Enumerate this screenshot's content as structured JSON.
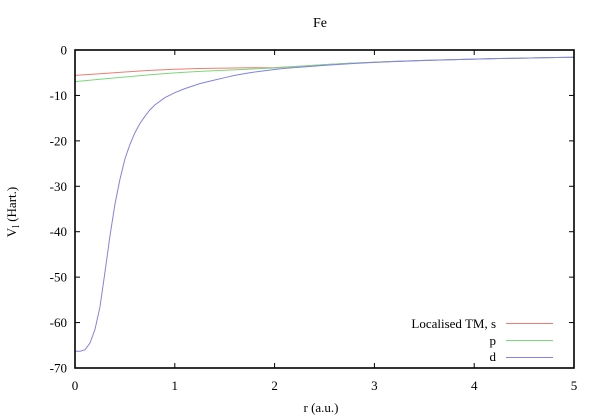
{
  "figure": {
    "title": "Fe",
    "xlabel": "r (a.u.)",
    "ylabel": "V_l (Hart.)",
    "ylabel_parts": {
      "base": "V",
      "sub": "l",
      "rest": " (Hart.)"
    }
  },
  "chart_data": {
    "type": "line",
    "title": "Fe",
    "xlabel": "r (a.u.)",
    "ylabel": "V_l (Hart.)",
    "xlim": [
      0,
      5
    ],
    "ylim": [
      -70,
      0
    ],
    "xticks": [
      0,
      1,
      2,
      3,
      4,
      5
    ],
    "yticks": [
      0,
      -10,
      -20,
      -30,
      -40,
      -50,
      -60,
      -70
    ],
    "grid": false,
    "background": "#ffffff",
    "axis_color": "#000000",
    "legend_position": "inside bottom-right",
    "series": [
      {
        "name": "Localised TM, s",
        "key": "s",
        "color": "#ec7c72",
        "points": [
          [
            0,
            -5.6
          ],
          [
            0.25,
            -5.25
          ],
          [
            0.5,
            -4.85
          ],
          [
            0.75,
            -4.5
          ],
          [
            1,
            -4.25
          ],
          [
            1.25,
            -4.08
          ],
          [
            1.5,
            -3.98
          ],
          [
            1.75,
            -3.92
          ],
          [
            2,
            -3.88
          ],
          [
            2.25,
            -3.56
          ],
          [
            2.5,
            -3.22
          ],
          [
            2.75,
            -2.93
          ],
          [
            3,
            -2.68
          ],
          [
            3.25,
            -2.47
          ],
          [
            3.5,
            -2.29
          ],
          [
            3.75,
            -2.13
          ],
          [
            4,
            -2.0
          ],
          [
            4.25,
            -1.88
          ],
          [
            4.5,
            -1.78
          ],
          [
            4.75,
            -1.68
          ],
          [
            5,
            -1.6
          ]
        ]
      },
      {
        "name": "p",
        "key": "p",
        "color": "#79d879",
        "points": [
          [
            0,
            -6.95
          ],
          [
            0.25,
            -6.45
          ],
          [
            0.5,
            -5.95
          ],
          [
            0.75,
            -5.45
          ],
          [
            1,
            -5.05
          ],
          [
            1.25,
            -4.72
          ],
          [
            1.5,
            -4.45
          ],
          [
            1.75,
            -4.2
          ],
          [
            2,
            -3.97
          ],
          [
            2.25,
            -3.58
          ],
          [
            2.5,
            -3.22
          ],
          [
            2.75,
            -2.93
          ],
          [
            3,
            -2.68
          ],
          [
            3.25,
            -2.47
          ],
          [
            3.5,
            -2.29
          ],
          [
            3.75,
            -2.13
          ],
          [
            4,
            -2.0
          ],
          [
            4.25,
            -1.88
          ],
          [
            4.5,
            -1.78
          ],
          [
            4.75,
            -1.68
          ],
          [
            5,
            -1.6
          ]
        ]
      },
      {
        "name": "d",
        "key": "d",
        "color": "#8282e8",
        "points": [
          [
            0,
            -66.3
          ],
          [
            0.05,
            -66.3
          ],
          [
            0.1,
            -66.0
          ],
          [
            0.15,
            -64.5
          ],
          [
            0.2,
            -61.5
          ],
          [
            0.25,
            -56.5
          ],
          [
            0.3,
            -49.0
          ],
          [
            0.35,
            -41.0
          ],
          [
            0.4,
            -34.0
          ],
          [
            0.45,
            -28.5
          ],
          [
            0.5,
            -24.0
          ],
          [
            0.55,
            -20.8
          ],
          [
            0.6,
            -18.2
          ],
          [
            0.65,
            -16.2
          ],
          [
            0.7,
            -14.6
          ],
          [
            0.75,
            -13.2
          ],
          [
            0.8,
            -12.1
          ],
          [
            0.9,
            -10.5
          ],
          [
            1,
            -9.4
          ],
          [
            1.1,
            -8.5
          ],
          [
            1.25,
            -7.4
          ],
          [
            1.4,
            -6.6
          ],
          [
            1.5,
            -6.1
          ],
          [
            1.6,
            -5.6
          ],
          [
            1.75,
            -5.0
          ],
          [
            1.9,
            -4.55
          ],
          [
            2,
            -4.3
          ],
          [
            2.1,
            -4.05
          ],
          [
            2.25,
            -3.78
          ],
          [
            2.5,
            -3.38
          ],
          [
            2.75,
            -3.02
          ],
          [
            3,
            -2.72
          ],
          [
            3.25,
            -2.5
          ],
          [
            3.5,
            -2.31
          ],
          [
            3.75,
            -2.14
          ],
          [
            4,
            -2.0
          ],
          [
            4.25,
            -1.88
          ],
          [
            4.5,
            -1.78
          ],
          [
            4.75,
            -1.68
          ],
          [
            5,
            -1.6
          ]
        ]
      }
    ]
  }
}
